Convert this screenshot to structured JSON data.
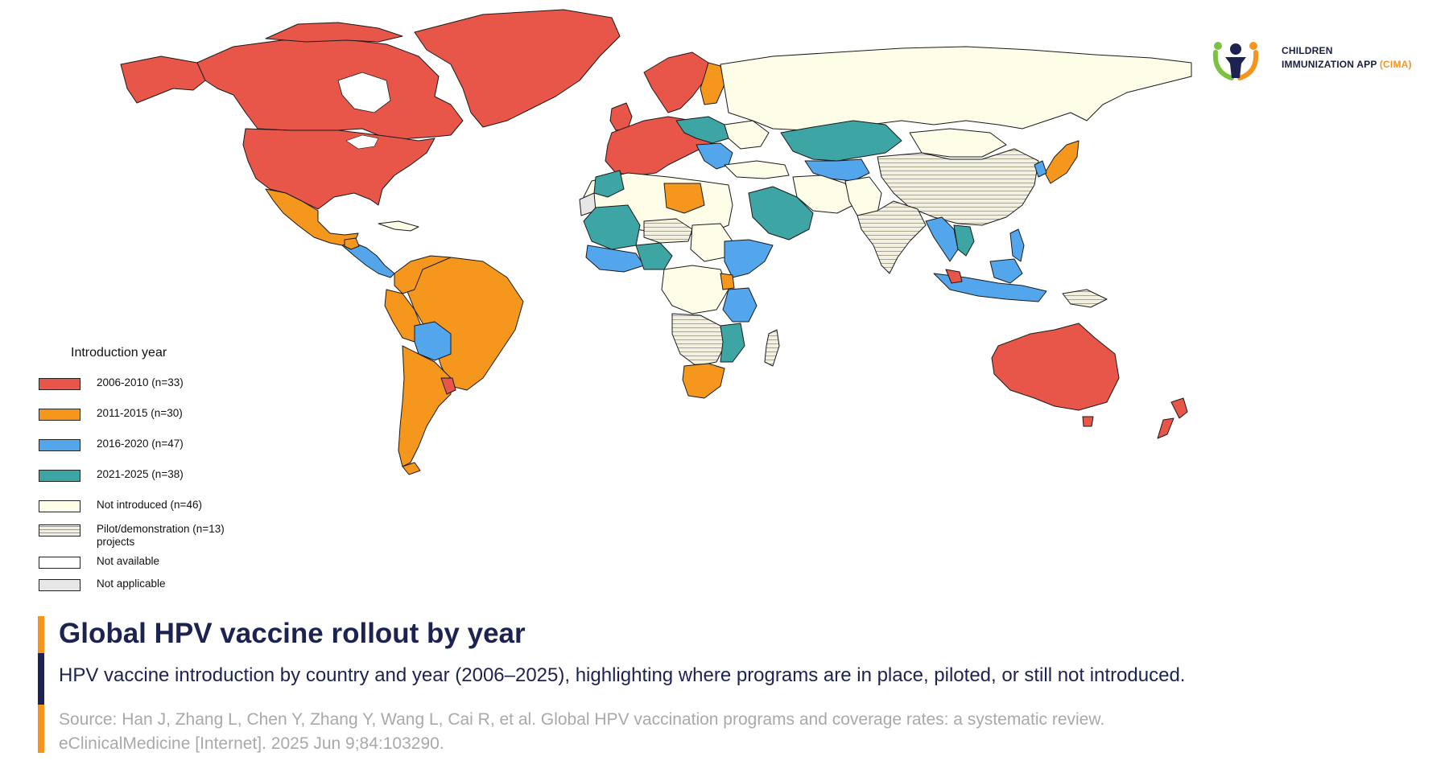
{
  "colors": {
    "y2006_2010": "#e8564a",
    "y2011_2015": "#f6971d",
    "y2016_2020": "#54a6ec",
    "y2021_2025": "#3ea5a5",
    "not_introduced": "#fdfde8",
    "pilot": "#f3f1de",
    "pilot_hatch": "#9a9a9a",
    "not_available": "#ffffff",
    "not_applicable": "#e6e6e6",
    "accent_orange": "#f6951e",
    "navy": "#1c2350"
  },
  "logo": {
    "line1": "CHILDREN",
    "line2": "IMMUNIZATION APP",
    "line2_accent": "(CIMA)"
  },
  "legend": {
    "title": "Introduction year",
    "items": [
      {
        "label": "2006-2010 (n=33)",
        "color": "#e8564a",
        "pattern": "solid"
      },
      {
        "label": "2011-2015 (n=30)",
        "color": "#f6971d",
        "pattern": "solid"
      },
      {
        "label": "2016-2020 (n=47)",
        "color": "#54a6ec",
        "pattern": "solid"
      },
      {
        "label": "2021-2025 (n=38)",
        "color": "#3ea5a5",
        "pattern": "solid"
      },
      {
        "label": "Not introduced (n=46)",
        "color": "#fdfde8",
        "pattern": "solid"
      },
      {
        "label": "Pilot/demonstration (n=13)\nprojects",
        "color": "#f3f1de",
        "pattern": "hatch"
      },
      {
        "label": "Not available",
        "color": "#ffffff",
        "pattern": "solid"
      },
      {
        "label": "Not applicable",
        "color": "#e6e6e6",
        "pattern": "solid"
      }
    ]
  },
  "title": "Global HPV vaccine rollout by year",
  "subtitle": "HPV vaccine introduction by country and year (2006–2025), highlighting where programs are in place, piloted, or still not introduced.",
  "source": "Source: Han J, Zhang L, Chen Y, Zhang Y, Wang L, Cai R, et al. Global HPV vaccination programs and coverage rates: a systematic review. eClinicalMedicine [Internet]. 2025 Jun 9;84:103290."
}
